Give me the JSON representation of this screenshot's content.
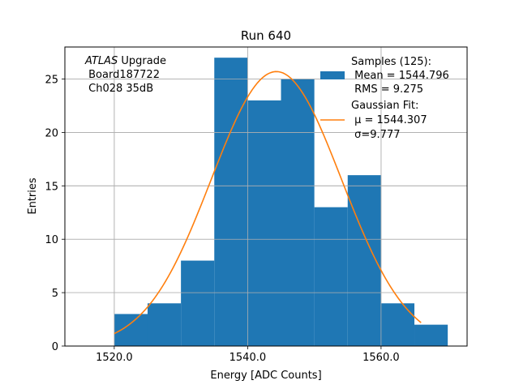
{
  "chart_data": {
    "type": "bar",
    "title": "Run 640",
    "xlabel": "Energy [ADC Counts]",
    "ylabel": "Entries",
    "xlim": [
      1512.6,
      1572.9
    ],
    "ylim": [
      0,
      28
    ],
    "grid": true,
    "x_ticks": [
      1520.0,
      1540.0,
      1560.0
    ],
    "x_tick_labels": [
      "1520.0",
      "1540.0",
      "1560.0"
    ],
    "y_ticks": [
      0,
      5,
      10,
      15,
      20,
      25
    ],
    "y_tick_labels": [
      "0",
      "5",
      "10",
      "15",
      "20",
      "25"
    ],
    "histogram": {
      "name": "Samples",
      "color": "#1f77b4",
      "bin_edges": [
        1520,
        1525,
        1530,
        1535,
        1540,
        1545,
        1550,
        1555,
        1560,
        1565,
        1570
      ],
      "counts": [
        3,
        4,
        8,
        27,
        23,
        25,
        13,
        16,
        4,
        2
      ]
    },
    "fit": {
      "name": "Gaussian Fit",
      "color": "#ff7f0e",
      "mu": 1544.307,
      "sigma": 9.777,
      "amplitude": 25.7,
      "x_range": [
        1520,
        1566
      ]
    },
    "annotation": {
      "line1_italic": "ATLAS",
      "line1_rest": " Upgrade",
      "line2": " Board187722",
      "line3": " Ch028 35dB"
    },
    "legend": {
      "placement": "top-right",
      "samples": {
        "line1": "Samples (125):",
        "line2": " Mean = 1544.796",
        "line3": " RMS = 9.275"
      },
      "fit": {
        "line1": "Gaussian Fit:",
        "line2": " μ = 1544.307",
        "line3": " σ=9.777"
      }
    }
  }
}
